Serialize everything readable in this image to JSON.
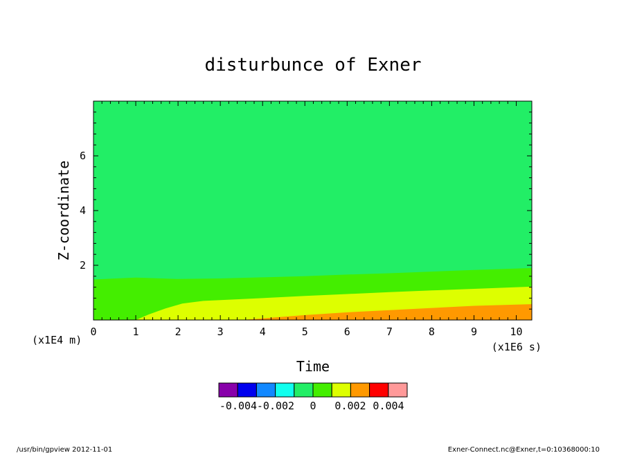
{
  "chart_data": {
    "type": "heatmap",
    "title": "disturbunce of Exner",
    "xlabel": "Time",
    "ylabel": "Z-coordinate",
    "x_unit": "(x1E6 s)",
    "y_unit": "(x1E4 m)",
    "xlim": [
      0,
      10.368
    ],
    "ylim": [
      0,
      8
    ],
    "x_ticks": [
      "0",
      "1",
      "2",
      "3",
      "4",
      "5",
      "6",
      "7",
      "8",
      "9",
      "10"
    ],
    "y_ticks": [
      "2",
      "4",
      "6"
    ],
    "grid": false,
    "background_level_color": "#22ee66",
    "contour_boundaries": [
      {
        "between": [
          "#22ee66",
          "#44ee00"
        ],
        "x": [
          0,
          1,
          2,
          3,
          4,
          5,
          6,
          7,
          8,
          9,
          10.368
        ],
        "z": [
          1.48,
          1.55,
          1.5,
          1.52,
          1.56,
          1.6,
          1.66,
          1.71,
          1.77,
          1.83,
          1.9
        ]
      },
      {
        "between": [
          "#44ee00",
          "#ddff00"
        ],
        "x": [
          1.0,
          1.3,
          1.7,
          2.1,
          2.6,
          3,
          4,
          5,
          6,
          7,
          8,
          9,
          10.368
        ],
        "z": [
          0,
          0.2,
          0.42,
          0.6,
          0.7,
          0.73,
          0.8,
          0.88,
          0.95,
          1.02,
          1.08,
          1.14,
          1.22
        ]
      },
      {
        "between": [
          "#ddff00",
          "#ff9900"
        ],
        "x": [
          3.5,
          4,
          5,
          6,
          7,
          8,
          9,
          10.368
        ],
        "z": [
          0,
          0.06,
          0.18,
          0.28,
          0.36,
          0.44,
          0.52,
          0.58
        ]
      }
    ],
    "colorbar": {
      "colors": [
        "#8800aa",
        "#0000ee",
        "#1188ff",
        "#11ffee",
        "#22ee66",
        "#44ee00",
        "#ddff00",
        "#ff9900",
        "#ff0000",
        "#ff9999"
      ],
      "labels": [
        "-0.004",
        "-0.002",
        "0",
        "0.002",
        "0.004"
      ]
    }
  },
  "footer": {
    "left": "/usr/bin/gpview   2012-11-01",
    "right": "Exner-Connect.nc@Exner,t=0:10368000:10"
  }
}
